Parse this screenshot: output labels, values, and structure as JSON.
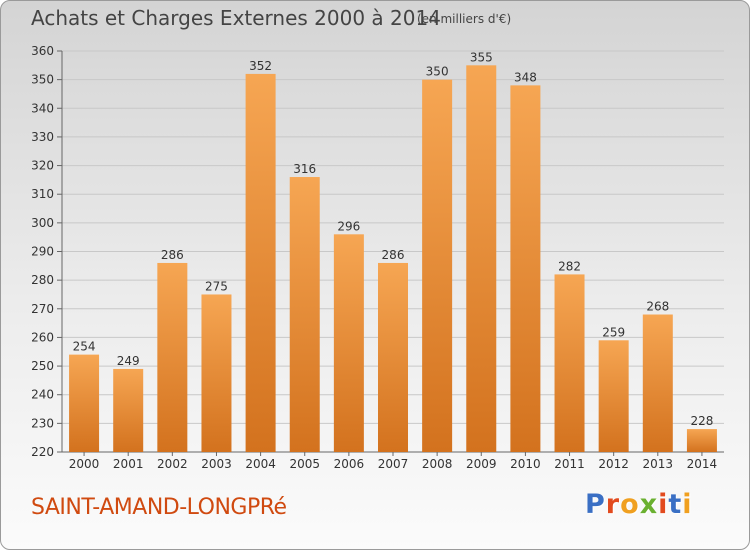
{
  "header": {
    "title": "Achats et Charges Externes 2000 à 2014",
    "subtitle": "(en milliers d'€)"
  },
  "footer": {
    "town": "SAINT-AMAND-LONGPRé",
    "logo_text": "Proxiti"
  },
  "colors": {
    "bar_light": "#f6a653",
    "bar_dark": "#d3721e",
    "text": "#333333",
    "town": "#d04a10",
    "logo": [
      "#3a6fc4",
      "#e24a1e",
      "#f0a020",
      "#6ab030",
      "#e24a1e",
      "#3a6fc4",
      "#f0a020"
    ]
  },
  "chart_data": {
    "type": "bar",
    "title": "Achats et Charges Externes 2000 à 2014",
    "subtitle": "(en milliers d'€)",
    "categories": [
      "2000",
      "2001",
      "2002",
      "2003",
      "2004",
      "2005",
      "2006",
      "2007",
      "2008",
      "2009",
      "2010",
      "2011",
      "2012",
      "2013",
      "2014"
    ],
    "values": [
      254,
      249,
      286,
      275,
      352,
      316,
      296,
      286,
      350,
      355,
      348,
      282,
      259,
      268,
      228
    ],
    "ylim": [
      220,
      360
    ],
    "yticks": [
      220,
      230,
      240,
      250,
      260,
      270,
      280,
      290,
      300,
      310,
      320,
      330,
      340,
      350,
      360
    ],
    "grid": true,
    "data_labels": true,
    "legend": "none"
  }
}
